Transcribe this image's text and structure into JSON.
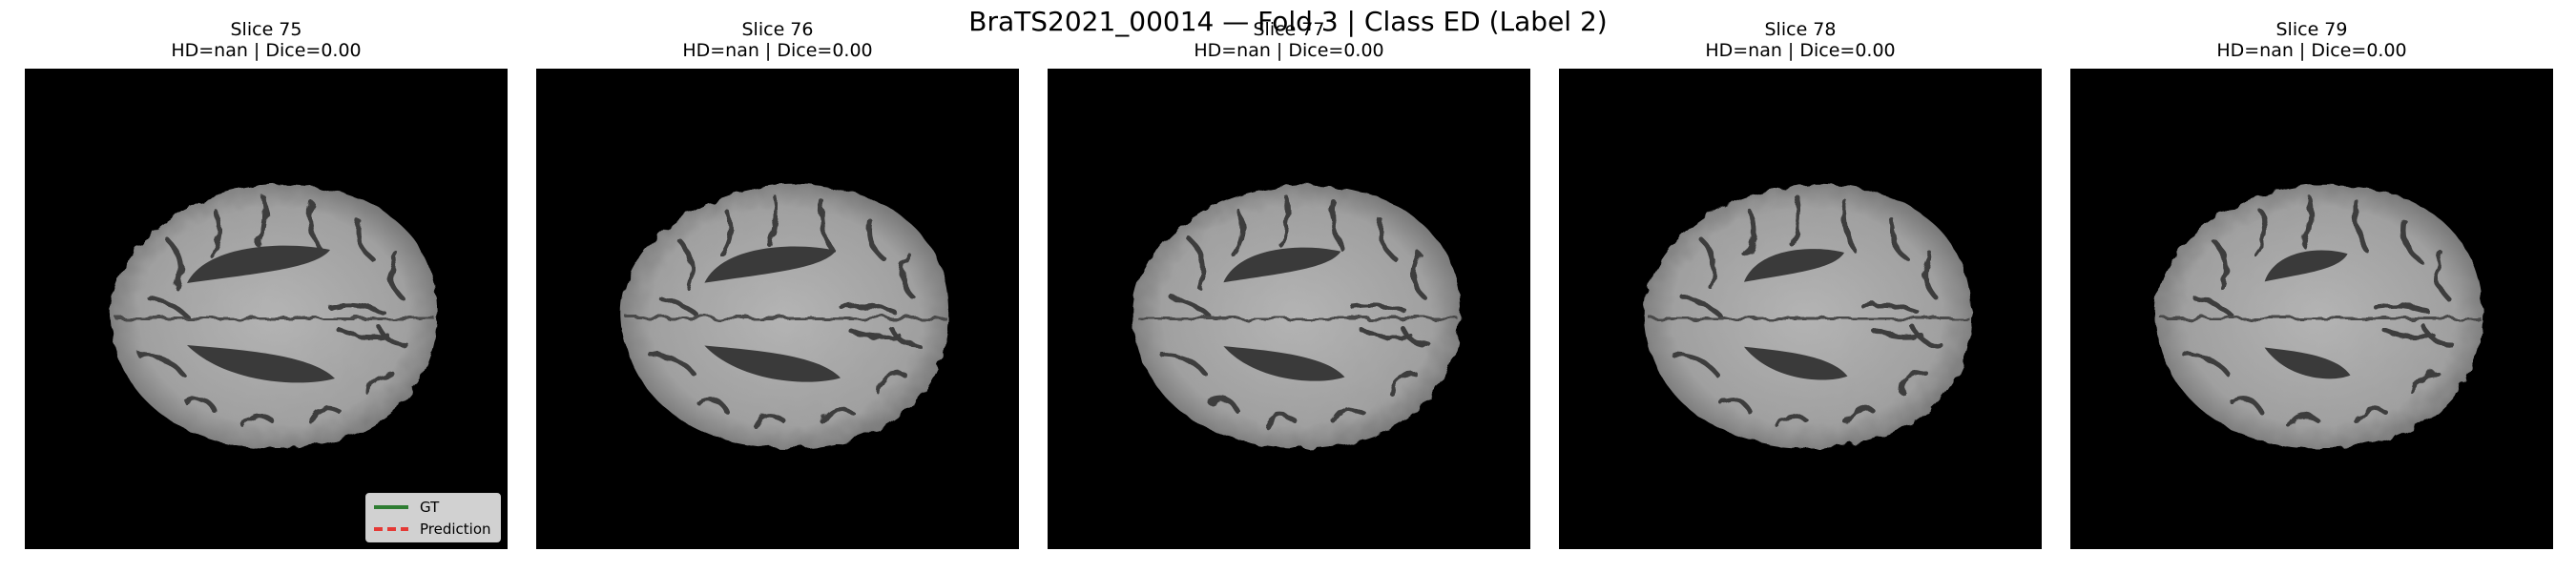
{
  "figure": {
    "title": "BraTS2021_00014 — Fold 3 | Class ED (Label 2)"
  },
  "panels": [
    {
      "slice": "Slice 75",
      "metrics": "HD=nan | Dice=0.00",
      "ventricle_scale": 1.0
    },
    {
      "slice": "Slice 76",
      "metrics": "HD=nan | Dice=0.00",
      "ventricle_scale": 0.92
    },
    {
      "slice": "Slice 77",
      "metrics": "HD=nan | Dice=0.00",
      "ventricle_scale": 0.82
    },
    {
      "slice": "Slice 78",
      "metrics": "HD=nan | Dice=0.00",
      "ventricle_scale": 0.7
    },
    {
      "slice": "Slice 79",
      "metrics": "HD=nan | Dice=0.00",
      "ventricle_scale": 0.58
    }
  ],
  "legend": {
    "items": [
      {
        "label": "GT",
        "color": "#2e7d32",
        "style": "solid"
      },
      {
        "label": "Prediction",
        "color": "#e53935",
        "style": "dashed"
      }
    ]
  },
  "colors": {
    "background": "#000000",
    "brain_tissue": "#9a9a9a",
    "ventricle": "#3a3a3a"
  }
}
